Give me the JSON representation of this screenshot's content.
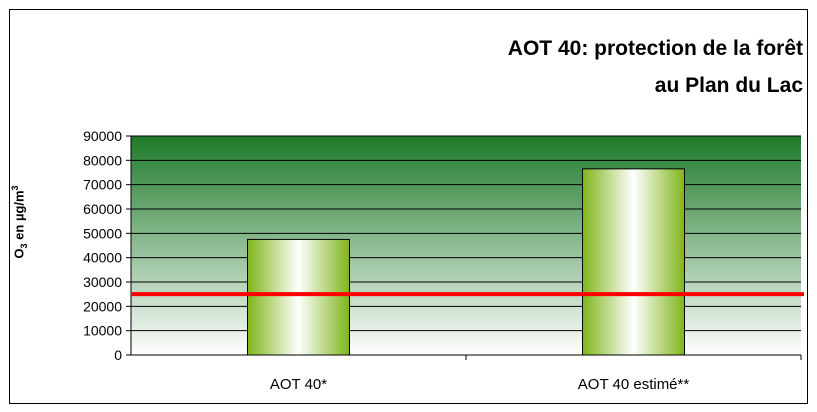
{
  "chart_data": {
    "type": "bar",
    "title_lines": [
      "AOT 40: protection de la forêt",
      "au Plan du Lac"
    ],
    "ylabel": {
      "main": "O",
      "sub": "3",
      "mid": " en µg/m",
      "sup": "3"
    },
    "categories": [
      "AOT 40*",
      "AOT 40 estimé**"
    ],
    "values": [
      47500,
      76500
    ],
    "ylim": [
      0,
      90000
    ],
    "yticks": [
      0,
      10000,
      20000,
      30000,
      40000,
      50000,
      60000,
      70000,
      80000,
      90000
    ],
    "reference_line": {
      "value": 25000,
      "color": "#ff0000"
    },
    "grid": true,
    "colors": {
      "plot_top": "#1f7a2a",
      "plot_bottom": "#ffffff",
      "bar_edge": "#7fb51a",
      "bar_center": "#ffffff"
    }
  }
}
